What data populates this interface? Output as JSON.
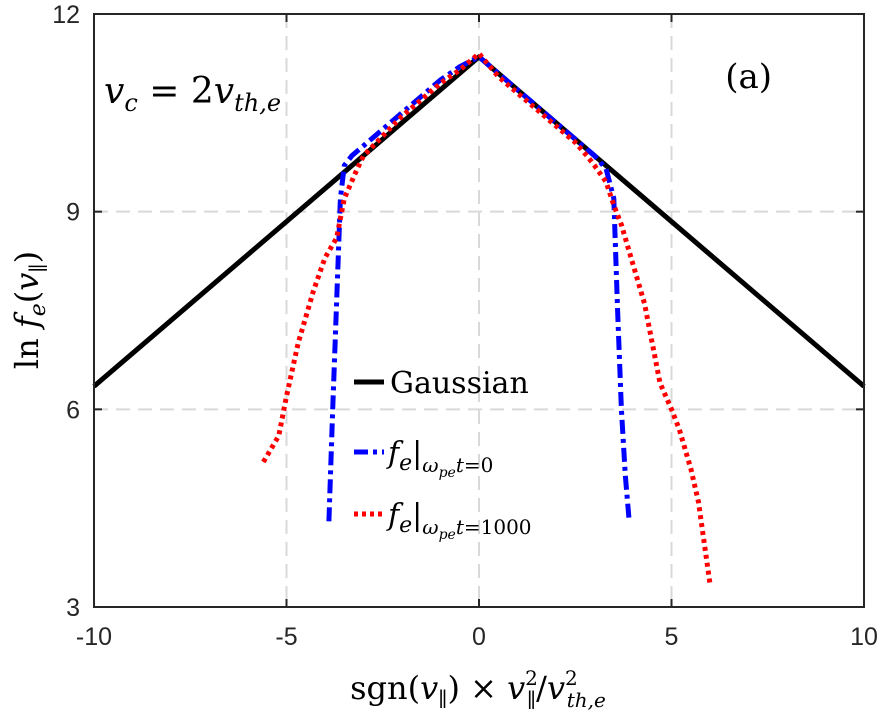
{
  "chart_data": {
    "type": "line",
    "panel_label": "(a)",
    "annotation": "v_c = 2v_{th,e}",
    "xlabel": "sgn(v_∥) × v_∥^2/v_{th,e}^2",
    "ylabel": "ln f_e(v_∥)",
    "xlim": [
      -10,
      10
    ],
    "ylim": [
      3,
      12
    ],
    "xticks": [
      -10,
      -5,
      0,
      5,
      10
    ],
    "yticks": [
      3,
      6,
      9,
      12
    ],
    "xtick_labels": [
      "-10",
      "-5",
      "0",
      "5",
      "10"
    ],
    "ytick_labels": [
      "3",
      "6",
      "9",
      "12"
    ],
    "grid": true,
    "legend_placement": "center",
    "series": [
      {
        "name": "Gaussian",
        "color": "#000000",
        "style": "solid",
        "x": [
          -10,
          0,
          10
        ],
        "y": [
          6.35,
          11.35,
          6.35
        ]
      },
      {
        "name": "f_e|_{ω_pe t=0}",
        "color": "#0000ff",
        "style": "dashdot",
        "x": [
          -3.9,
          -3.8,
          -3.6,
          -3.5,
          -3.3,
          -3.0,
          -2.5,
          -2.0,
          -1.5,
          -1.0,
          -0.5,
          0,
          0.5,
          1.0,
          1.5,
          2.0,
          2.5,
          3.0,
          3.3,
          3.5,
          3.6,
          3.7,
          3.8,
          3.9
        ],
        "y": [
          4.3,
          6.0,
          9.2,
          9.7,
          9.85,
          10.0,
          10.25,
          10.5,
          10.75,
          11.0,
          11.2,
          11.35,
          11.1,
          10.85,
          10.6,
          10.35,
          10.1,
          9.85,
          9.65,
          9.2,
          7.5,
          6.0,
          5.0,
          4.3
        ]
      },
      {
        "name": "f_e|_{ω_pe t=1000}",
        "color": "#ff0000",
        "style": "dotted",
        "x": [
          -5.6,
          -5.2,
          -5.0,
          -4.7,
          -4.3,
          -4.0,
          -3.7,
          -3.5,
          -3.2,
          -3.0,
          -2.5,
          -2.0,
          -1.5,
          -1.0,
          -0.5,
          0,
          0.5,
          1.0,
          1.5,
          2.0,
          2.5,
          2.8,
          3.0,
          3.3,
          3.5,
          3.7,
          4.0,
          4.3,
          4.7,
          5.0,
          5.2,
          5.5,
          5.7,
          6.0
        ],
        "y": [
          5.2,
          5.6,
          6.2,
          7.0,
          7.8,
          8.3,
          8.6,
          9.2,
          9.6,
          9.85,
          10.15,
          10.45,
          10.7,
          10.95,
          11.15,
          11.4,
          11.05,
          10.8,
          10.55,
          10.3,
          10.05,
          9.85,
          9.7,
          9.45,
          9.1,
          8.8,
          8.2,
          7.6,
          6.4,
          6.0,
          5.7,
          5.1,
          4.6,
          3.35
        ]
      }
    ]
  }
}
